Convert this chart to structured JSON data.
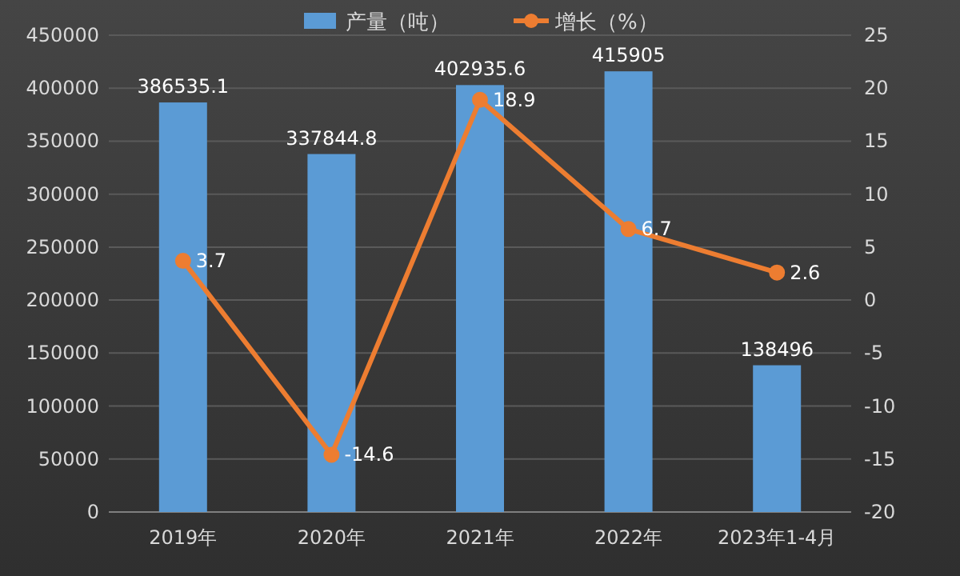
{
  "chart_data": {
    "type": "bar",
    "categories": [
      "2019年",
      "2020年",
      "2021年",
      "2022年",
      "2023年1-4月"
    ],
    "series": [
      {
        "name": "产量（吨）",
        "color": "#5b9bd5",
        "values": [
          386535.1,
          337844.8,
          402935.6,
          415905,
          138496
        ]
      },
      {
        "name": "增长（%）",
        "type": "line",
        "axis": "y2",
        "color": "#ed7d31",
        "values": [
          3.7,
          -14.6,
          18.9,
          6.7,
          2.6
        ]
      }
    ],
    "ylim": [
      0,
      450000
    ],
    "yticks": [
      0,
      50000,
      100000,
      150000,
      200000,
      250000,
      300000,
      350000,
      400000,
      450000
    ],
    "y2lim": [
      -20,
      25
    ],
    "y2ticks": [
      -20,
      -15,
      -10,
      -5,
      0,
      5,
      10,
      15,
      20,
      25
    ],
    "grid": "y",
    "legend": "top",
    "marker": "circle",
    "line_style": "solid",
    "data_labels": true
  }
}
